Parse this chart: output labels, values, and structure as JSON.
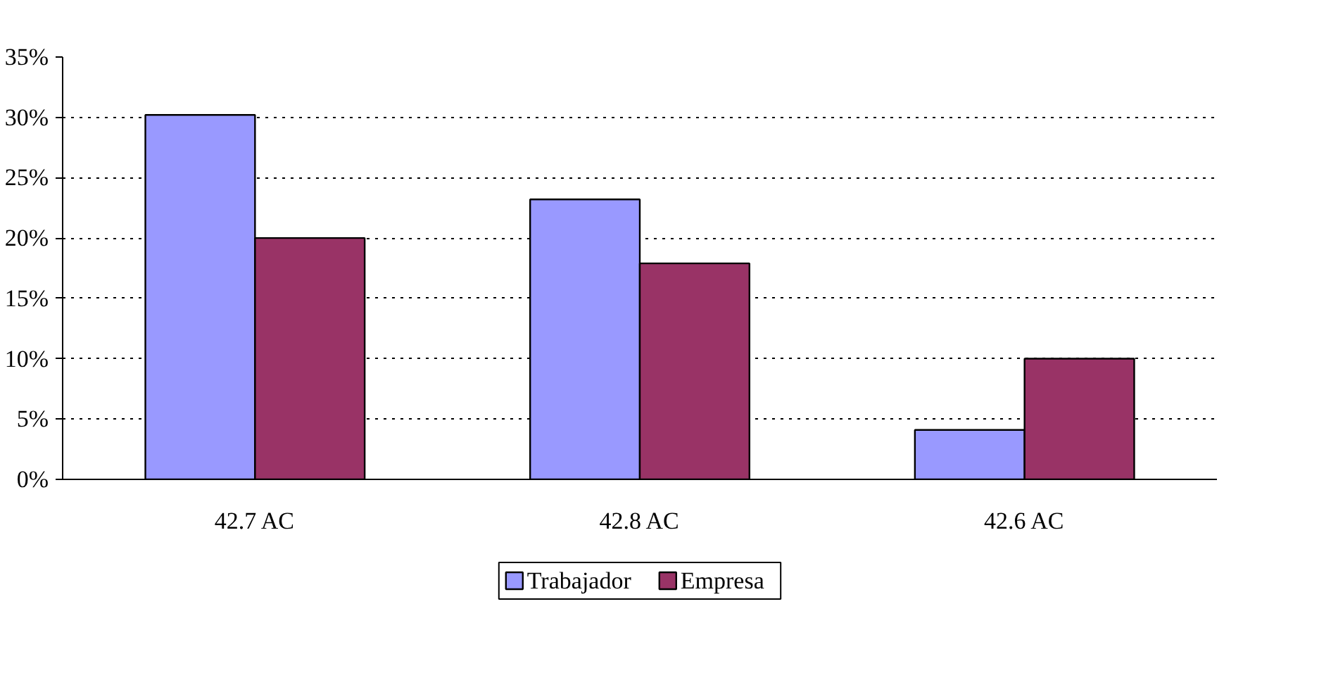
{
  "chart_data": {
    "type": "bar",
    "categories": [
      "42.7 AC",
      "42.8 AC",
      "42.6 AC"
    ],
    "series": [
      {
        "name": "Trabajador",
        "color": "#9999ff",
        "values": [
          30.2,
          23.2,
          4.1
        ]
      },
      {
        "name": "Empresa",
        "color": "#993366",
        "values": [
          20.0,
          17.9,
          10.0
        ]
      }
    ],
    "ylim": [
      0,
      35
    ],
    "yticks": [
      {
        "value": 0,
        "label": "0%"
      },
      {
        "value": 5,
        "label": "5%"
      },
      {
        "value": 10,
        "label": "10%"
      },
      {
        "value": 15,
        "label": "15%"
      },
      {
        "value": 20,
        "label": "20%"
      },
      {
        "value": 25,
        "label": "25%"
      },
      {
        "value": 30,
        "label": "30%"
      },
      {
        "value": 35,
        "label": "35%"
      }
    ],
    "grid": "y",
    "legend": "bottom"
  }
}
